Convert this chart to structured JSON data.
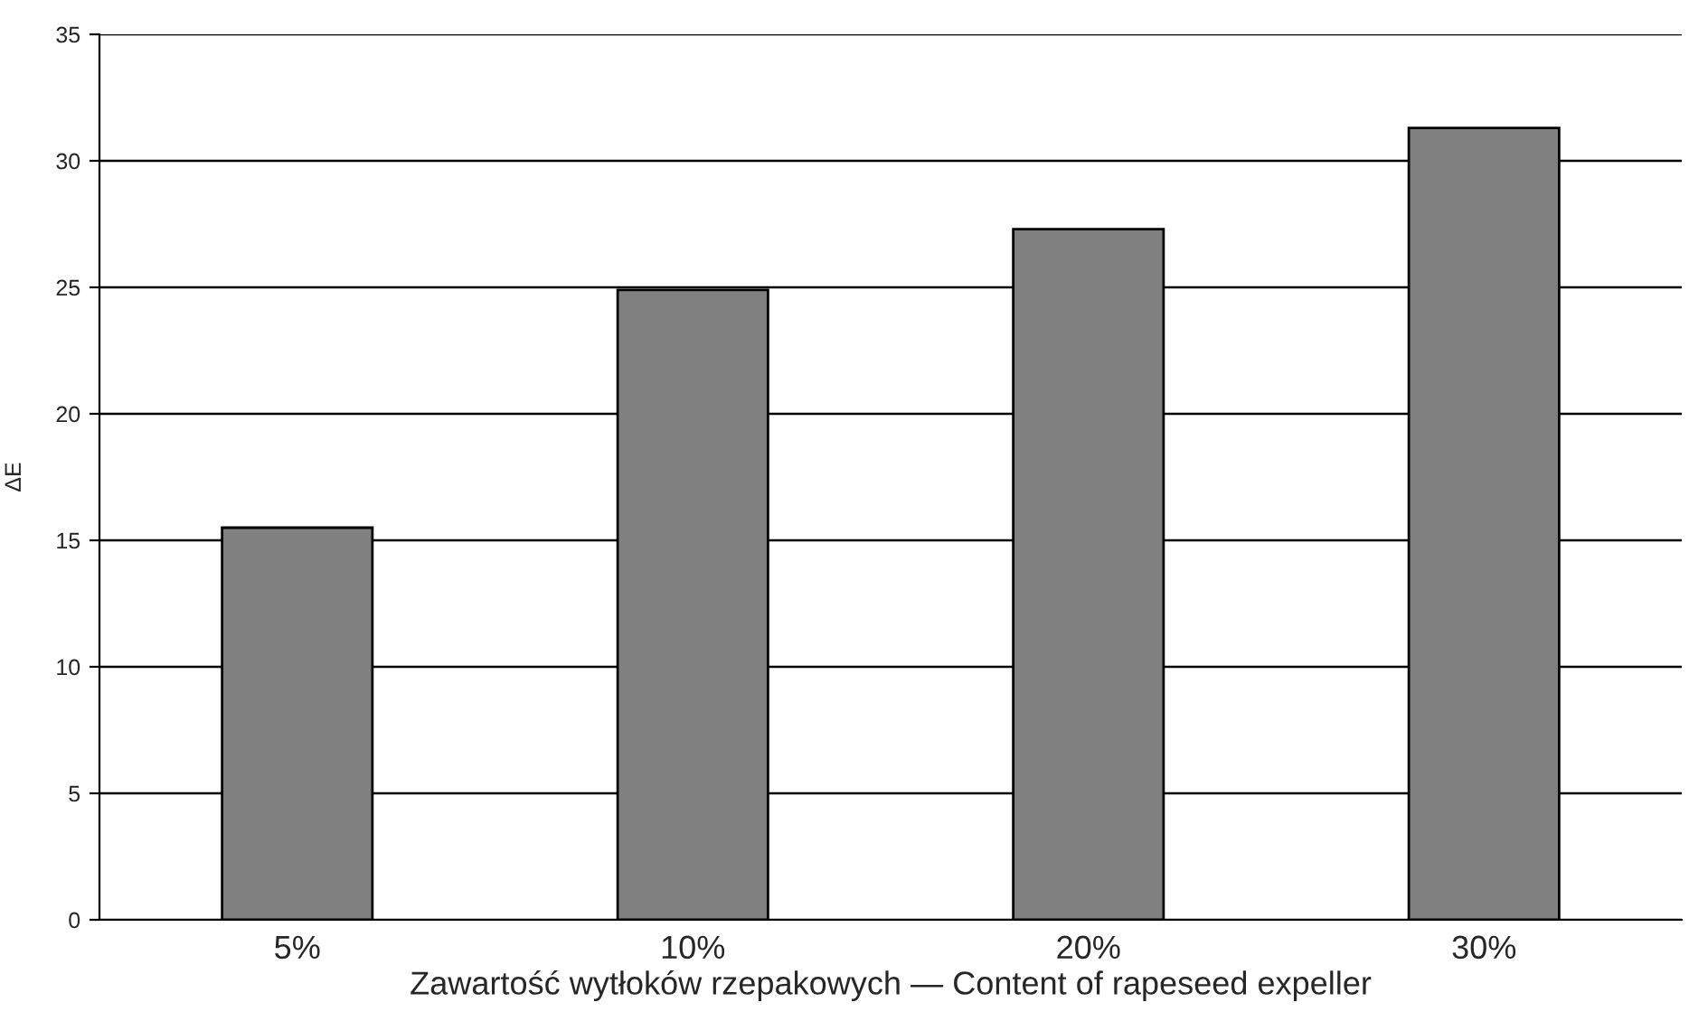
{
  "chart_data": {
    "type": "bar",
    "xlabel": "Zawartość wytłoków rzepakowych — Content of rapeseed expeller",
    "ylabel": "ΔE",
    "categories": [
      "5%",
      "10%",
      "20%",
      "30%"
    ],
    "values": [
      15.5,
      24.9,
      27.3,
      31.3
    ],
    "color": "#808080",
    "ylim": [
      0,
      35
    ],
    "yticks": [
      0,
      5,
      10,
      15,
      20,
      25,
      30,
      35
    ],
    "grid": "y"
  }
}
